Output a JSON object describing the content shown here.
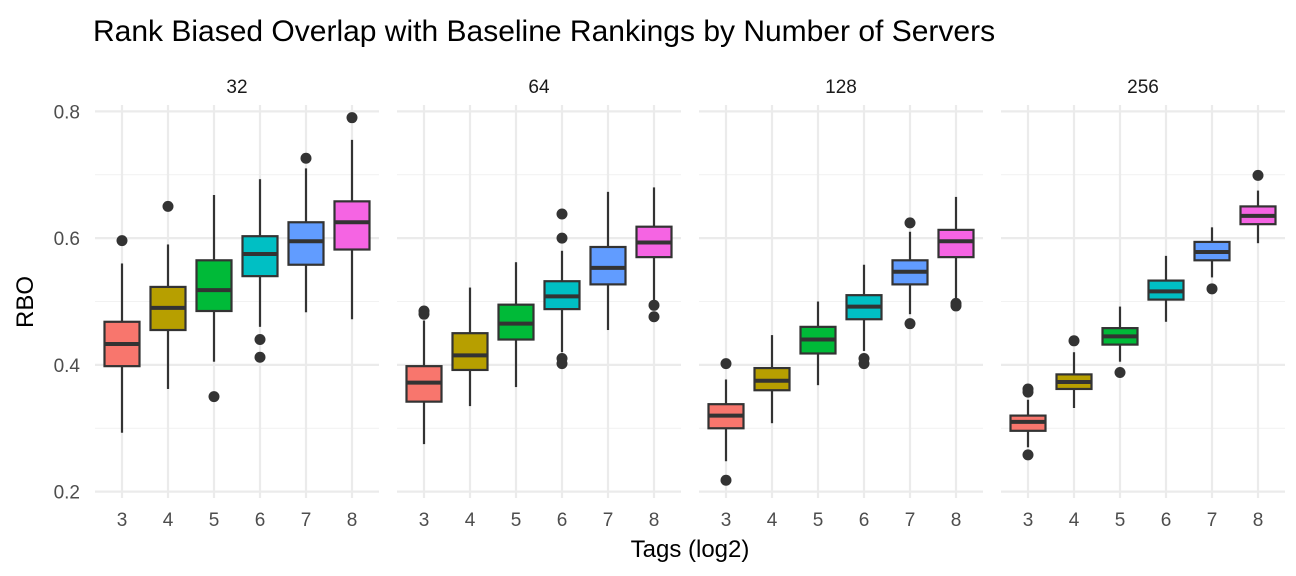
{
  "chart_data": {
    "type": "boxplot",
    "title": "Rank Biased Overlap with Baseline Rankings by Number of Servers",
    "xlabel": "Tags (log2)",
    "ylabel": "RBO",
    "ylim": [
      0.2,
      0.8
    ],
    "yticks": [
      "0.2",
      "0.4",
      "0.6",
      "0.8"
    ],
    "categories": [
      "3",
      "4",
      "5",
      "6",
      "7",
      "8"
    ],
    "colors": [
      "#F8766D",
      "#B79F00",
      "#00BA38",
      "#00BFC4",
      "#619CFF",
      "#F564E3"
    ],
    "grid": true,
    "legend": "none",
    "facets": [
      {
        "label": "32",
        "boxes": [
          {
            "cat": "3",
            "lower": 0.293,
            "q1": 0.398,
            "median": 0.433,
            "q3": 0.468,
            "upper": 0.56,
            "outliers": [
              0.596
            ]
          },
          {
            "cat": "4",
            "lower": 0.362,
            "q1": 0.455,
            "median": 0.49,
            "q3": 0.523,
            "upper": 0.59,
            "outliers": [
              0.65
            ]
          },
          {
            "cat": "5",
            "lower": 0.405,
            "q1": 0.485,
            "median": 0.518,
            "q3": 0.565,
            "upper": 0.668,
            "outliers": [
              0.35
            ]
          },
          {
            "cat": "6",
            "lower": 0.46,
            "q1": 0.54,
            "median": 0.575,
            "q3": 0.603,
            "upper": 0.693,
            "outliers": [
              0.44,
              0.412
            ]
          },
          {
            "cat": "7",
            "lower": 0.483,
            "q1": 0.558,
            "median": 0.595,
            "q3": 0.625,
            "upper": 0.71,
            "outliers": [
              0.726
            ]
          },
          {
            "cat": "8",
            "lower": 0.472,
            "q1": 0.582,
            "median": 0.625,
            "q3": 0.658,
            "upper": 0.755,
            "outliers": [
              0.79
            ]
          }
        ]
      },
      {
        "label": "64",
        "boxes": [
          {
            "cat": "3",
            "lower": 0.275,
            "q1": 0.342,
            "median": 0.372,
            "q3": 0.398,
            "upper": 0.47,
            "outliers": [
              0.485,
              0.48
            ]
          },
          {
            "cat": "4",
            "lower": 0.335,
            "q1": 0.392,
            "median": 0.415,
            "q3": 0.45,
            "upper": 0.522,
            "outliers": []
          },
          {
            "cat": "5",
            "lower": 0.365,
            "q1": 0.44,
            "median": 0.465,
            "q3": 0.495,
            "upper": 0.562,
            "outliers": []
          },
          {
            "cat": "6",
            "lower": 0.42,
            "q1": 0.488,
            "median": 0.508,
            "q3": 0.532,
            "upper": 0.58,
            "outliers": [
              0.638,
              0.6,
              0.41,
              0.402
            ]
          },
          {
            "cat": "7",
            "lower": 0.455,
            "q1": 0.527,
            "median": 0.553,
            "q3": 0.586,
            "upper": 0.673,
            "outliers": []
          },
          {
            "cat": "8",
            "lower": 0.5,
            "q1": 0.57,
            "median": 0.593,
            "q3": 0.618,
            "upper": 0.68,
            "outliers": [
              0.494,
              0.476
            ]
          }
        ]
      },
      {
        "label": "128",
        "boxes": [
          {
            "cat": "3",
            "lower": 0.248,
            "q1": 0.3,
            "median": 0.32,
            "q3": 0.338,
            "upper": 0.377,
            "outliers": [
              0.402,
              0.218
            ]
          },
          {
            "cat": "4",
            "lower": 0.308,
            "q1": 0.36,
            "median": 0.375,
            "q3": 0.395,
            "upper": 0.447,
            "outliers": []
          },
          {
            "cat": "5",
            "lower": 0.368,
            "q1": 0.418,
            "median": 0.44,
            "q3": 0.46,
            "upper": 0.5,
            "outliers": []
          },
          {
            "cat": "6",
            "lower": 0.422,
            "q1": 0.472,
            "median": 0.492,
            "q3": 0.51,
            "upper": 0.558,
            "outliers": [
              0.41,
              0.402
            ]
          },
          {
            "cat": "7",
            "lower": 0.48,
            "q1": 0.527,
            "median": 0.547,
            "q3": 0.565,
            "upper": 0.61,
            "outliers": [
              0.624,
              0.465
            ]
          },
          {
            "cat": "8",
            "lower": 0.505,
            "q1": 0.57,
            "median": 0.595,
            "q3": 0.613,
            "upper": 0.665,
            "outliers": [
              0.497,
              0.493
            ]
          }
        ]
      },
      {
        "label": "256",
        "boxes": [
          {
            "cat": "3",
            "lower": 0.27,
            "q1": 0.296,
            "median": 0.31,
            "q3": 0.32,
            "upper": 0.345,
            "outliers": [
              0.362,
              0.357,
              0.258
            ]
          },
          {
            "cat": "4",
            "lower": 0.332,
            "q1": 0.362,
            "median": 0.373,
            "q3": 0.385,
            "upper": 0.42,
            "outliers": [
              0.438
            ]
          },
          {
            "cat": "5",
            "lower": 0.405,
            "q1": 0.432,
            "median": 0.445,
            "q3": 0.458,
            "upper": 0.492,
            "outliers": [
              0.388
            ]
          },
          {
            "cat": "6",
            "lower": 0.468,
            "q1": 0.503,
            "median": 0.516,
            "q3": 0.533,
            "upper": 0.572,
            "outliers": []
          },
          {
            "cat": "7",
            "lower": 0.538,
            "q1": 0.565,
            "median": 0.578,
            "q3": 0.594,
            "upper": 0.617,
            "outliers": [
              0.52
            ]
          },
          {
            "cat": "8",
            "lower": 0.592,
            "q1": 0.622,
            "median": 0.635,
            "q3": 0.65,
            "upper": 0.675,
            "outliers": [
              0.699
            ]
          }
        ]
      }
    ]
  }
}
